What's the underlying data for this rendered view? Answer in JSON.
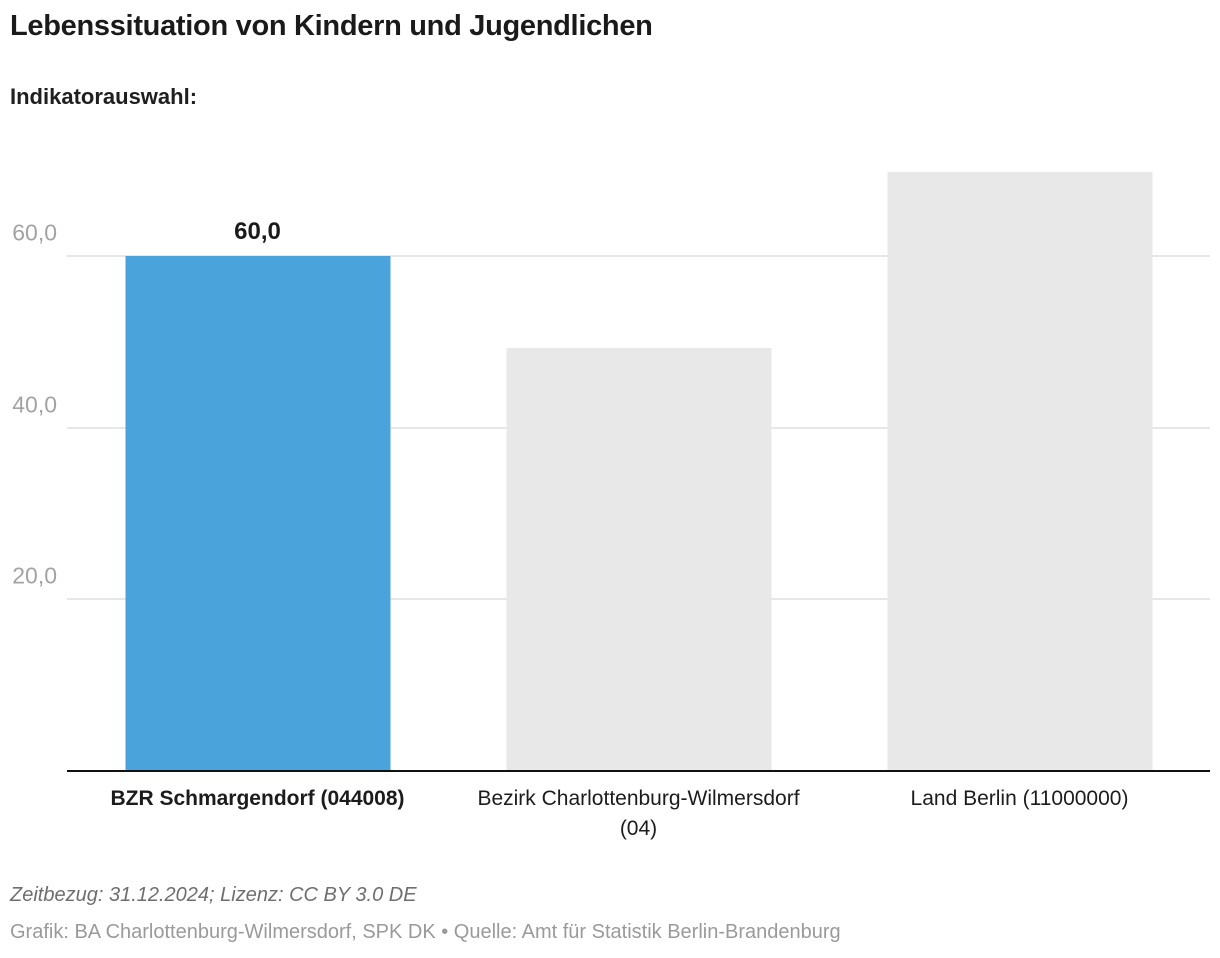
{
  "header": {
    "title": "Lebenssituation von Kindern und Jugendlichen",
    "subtitle": "Indikatorauswahl:"
  },
  "chart_data": {
    "type": "bar",
    "title": "Lebenssituation von Kindern und Jugendlichen",
    "categories": [
      "BZR Schmargendorf (044008)",
      "Bezirk Charlottenburg-Wilmersdorf (04)",
      "Land Berlin (11000000)"
    ],
    "values": [
      60.0,
      49.3,
      69.9
    ],
    "data_labels": [
      "60,0",
      null,
      null
    ],
    "highlight_index": 0,
    "yticks": [
      20,
      40,
      60
    ],
    "ytick_labels": [
      "20,0",
      "40,0",
      "60,0"
    ],
    "ylim": [
      0,
      73.6
    ],
    "grid": "horizontal",
    "legend": "none",
    "colors": {
      "highlight": "#4ba3db",
      "default": "#e8e8e8",
      "gridline": "#e7e7e7",
      "axis_line": "#111111",
      "ytick_text": "#a3a3a3"
    }
  },
  "footer": {
    "line1": "Zeitbezug: 31.12.2024; Lizenz: CC BY 3.0 DE",
    "line2": "Grafik: BA Charlottenburg-Wilmersdorf, SPK DK • Quelle: Amt für Statistik Berlin-Brandenburg"
  }
}
